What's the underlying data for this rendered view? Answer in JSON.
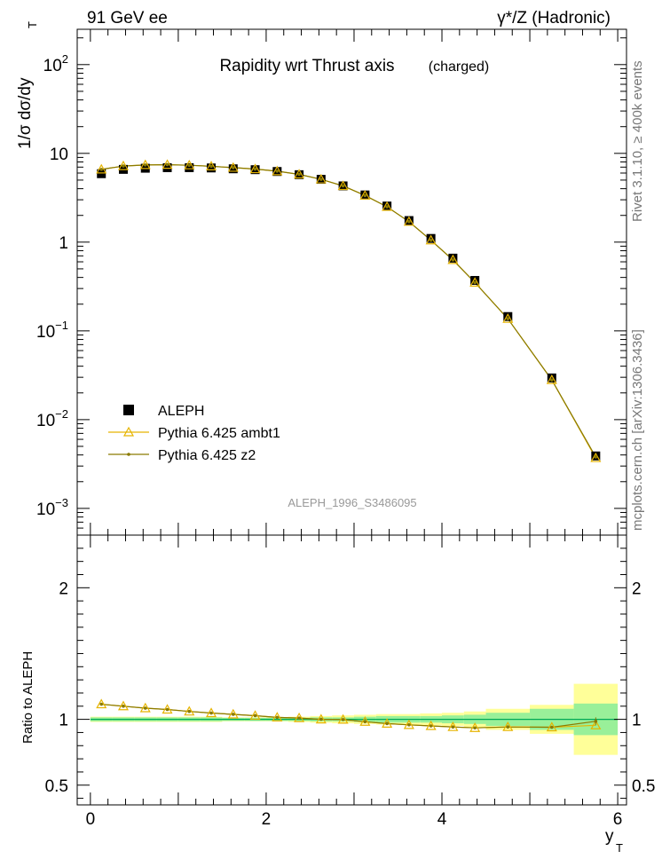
{
  "header": {
    "left": "91 GeV ee",
    "right": "γ*/Z (Hadronic)"
  },
  "side_labels": {
    "upper": "Rivet 3.1.10, ≥ 400k events",
    "lower": "mcplots.cern.ch [arXiv:1306.3436]"
  },
  "colors": {
    "data": "#000000",
    "ambt1": "#e6b400",
    "z2": "#8a7a00",
    "band_inner": "#99f099",
    "band_outer": "#ffff99",
    "ratio_line": "#00aa55"
  },
  "chart_data": [
    {
      "type": "scatter",
      "panel": "main",
      "title": "Rapidity wrt Thrust axis",
      "subtitle": "(charged)",
      "watermark": "ALEPH_1996_S3486095",
      "xlabel": "y",
      "xlabel_sub": "T",
      "ylabel": "1/σ dσ/dy",
      "ylabel_sub": "T",
      "yscale": "log",
      "xlim": [
        -0.15,
        6.1
      ],
      "ylim": [
        0.0005,
        250
      ],
      "yticks": [
        {
          "value": 0.001,
          "base": "10",
          "exp": "−3"
        },
        {
          "value": 0.01,
          "base": "10",
          "exp": "−2"
        },
        {
          "value": 0.1,
          "base": "10",
          "exp": "−1"
        },
        {
          "value": 1,
          "base": "1",
          "exp": ""
        },
        {
          "value": 10,
          "base": "10",
          "exp": ""
        },
        {
          "value": 100,
          "base": "10",
          "exp": "2"
        }
      ],
      "legend_position": "bottom-left",
      "x": [
        0.125,
        0.375,
        0.625,
        0.875,
        1.125,
        1.375,
        1.625,
        1.875,
        2.125,
        2.375,
        2.625,
        2.875,
        3.125,
        3.375,
        3.625,
        3.875,
        4.125,
        4.375,
        4.75,
        5.25,
        5.75
      ],
      "series": [
        {
          "name": "ALEPH",
          "marker": "square",
          "values": [
            5.9,
            6.6,
            6.8,
            6.9,
            6.9,
            6.85,
            6.7,
            6.55,
            6.25,
            5.75,
            5.1,
            4.3,
            3.4,
            2.55,
            1.75,
            1.1,
            0.66,
            0.37,
            0.145,
            0.0295,
            0.0039
          ]
        },
        {
          "name": "Pythia 6.425 ambt1",
          "marker": "triangle",
          "values": [
            6.6,
            7.2,
            7.4,
            7.45,
            7.35,
            7.15,
            6.9,
            6.65,
            6.3,
            5.8,
            5.1,
            4.3,
            3.35,
            2.5,
            1.7,
            1.05,
            0.63,
            0.35,
            0.137,
            0.028,
            0.0037
          ]
        },
        {
          "name": "Pythia 6.425 z2",
          "marker": "dot",
          "values": [
            6.6,
            7.2,
            7.4,
            7.45,
            7.35,
            7.15,
            6.9,
            6.65,
            6.3,
            5.8,
            5.1,
            4.3,
            3.35,
            2.5,
            1.7,
            1.05,
            0.63,
            0.35,
            0.137,
            0.028,
            0.0038
          ]
        }
      ]
    },
    {
      "type": "line",
      "panel": "ratio",
      "ylabel": "Ratio to ALEPH",
      "xlabel": "y",
      "xlabel_sub": "T",
      "xlim": [
        -0.15,
        6.1
      ],
      "ylim": [
        0.35,
        2.4
      ],
      "xticks": [
        0,
        2,
        4,
        6
      ],
      "yticks": [
        0.5,
        1,
        2
      ],
      "bands": {
        "edges": [
          0,
          0.25,
          0.5,
          0.75,
          1.0,
          1.25,
          1.5,
          1.75,
          2.0,
          2.25,
          2.5,
          2.75,
          3.0,
          3.25,
          3.5,
          3.75,
          4.0,
          4.25,
          4.5,
          5.0,
          5.5,
          6.0
        ],
        "inner": [
          0.015,
          0.015,
          0.015,
          0.015,
          0.015,
          0.015,
          0.012,
          0.012,
          0.012,
          0.012,
          0.015,
          0.015,
          0.02,
          0.025,
          0.025,
          0.025,
          0.03,
          0.035,
          0.05,
          0.08,
          0.12
        ],
        "outer": [
          0.02,
          0.02,
          0.02,
          0.02,
          0.02,
          0.02,
          0.015,
          0.015,
          0.015,
          0.02,
          0.025,
          0.03,
          0.035,
          0.04,
          0.04,
          0.045,
          0.05,
          0.06,
          0.08,
          0.11,
          0.27
        ]
      },
      "x": [
        0.125,
        0.375,
        0.625,
        0.875,
        1.125,
        1.375,
        1.625,
        1.875,
        2.125,
        2.375,
        2.625,
        2.875,
        3.125,
        3.375,
        3.625,
        3.875,
        4.125,
        4.375,
        4.75,
        5.25,
        5.75
      ],
      "series": [
        {
          "name": "Pythia 6.425 ambt1",
          "values": [
            1.115,
            1.1,
            1.085,
            1.075,
            1.06,
            1.048,
            1.038,
            1.028,
            1.015,
            1.01,
            1.0,
            0.998,
            0.982,
            0.968,
            0.958,
            0.95,
            0.942,
            0.935,
            0.942,
            0.94,
            0.955
          ]
        },
        {
          "name": "Pythia 6.425 z2",
          "values": [
            1.115,
            1.1,
            1.085,
            1.075,
            1.06,
            1.048,
            1.038,
            1.028,
            1.015,
            1.01,
            1.0,
            0.998,
            0.982,
            0.968,
            0.958,
            0.95,
            0.942,
            0.935,
            0.942,
            0.94,
            0.985
          ]
        }
      ]
    }
  ]
}
